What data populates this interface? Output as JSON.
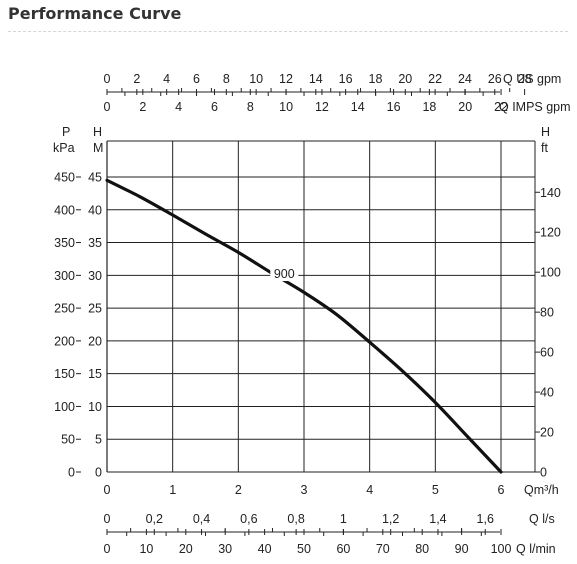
{
  "page": {
    "title": "Performance Curve"
  },
  "chart_data": {
    "type": "line",
    "title": "",
    "grid": true,
    "series": [
      {
        "name": "900",
        "x": [
          0,
          0.5,
          1,
          1.5,
          2,
          2.5,
          3,
          3.5,
          4,
          4.5,
          5,
          5.5,
          6
        ],
        "y": [
          44.5,
          42,
          39.2,
          36.3,
          33.5,
          30.4,
          27.4,
          24.0,
          19.8,
          15.4,
          10.6,
          5.3,
          0
        ]
      }
    ],
    "axes": {
      "x_m3h": {
        "label": "Qm³/h",
        "range": [
          0,
          6
        ],
        "ticks": [
          "0",
          "1",
          "2",
          "3",
          "4",
          "5",
          "6"
        ]
      },
      "y_head_m": {
        "label_top": "H",
        "label_unit": "M",
        "range": [
          0,
          45
        ],
        "ticks": [
          "0",
          "5",
          "10",
          "15",
          "20",
          "25",
          "30",
          "35",
          "40",
          "45"
        ]
      },
      "y_pressure_kpa": {
        "label_top": "P",
        "label_unit": "kPa",
        "range": [
          0,
          450
        ],
        "ticks": [
          "0",
          "50",
          "100",
          "150",
          "200",
          "250",
          "300",
          "350",
          "400",
          "450"
        ]
      },
      "y_head_ft": {
        "label_top": "H",
        "label_unit": "ft",
        "range": [
          0,
          140
        ],
        "ticks": [
          "0",
          "20",
          "40",
          "60",
          "80",
          "100",
          "120",
          "140"
        ]
      },
      "x_us_gpm": {
        "label": "Q US gpm",
        "max": 28,
        "ticks": [
          "0",
          "2",
          "4",
          "6",
          "8",
          "10",
          "12",
          "14",
          "16",
          "18",
          "20",
          "22",
          "24",
          "26",
          "28"
        ]
      },
      "x_imps_gpm": {
        "label": "Q IMPS gpm",
        "max": 22,
        "ticks": [
          "0",
          "2",
          "4",
          "6",
          "8",
          "10",
          "12",
          "14",
          "16",
          "18",
          "20",
          "22"
        ]
      },
      "x_ls": {
        "label": "Q l/s",
        "max": 1.6,
        "ticks": [
          "0",
          "0,2",
          "0,4",
          "0,6",
          "0,8",
          "1",
          "1,2",
          "1,4",
          "1,6"
        ]
      },
      "x_lmin": {
        "label": "Q l/min",
        "max": 100,
        "ticks": [
          "0",
          "10",
          "20",
          "30",
          "40",
          "50",
          "60",
          "70",
          "80",
          "90",
          "100"
        ]
      }
    }
  }
}
